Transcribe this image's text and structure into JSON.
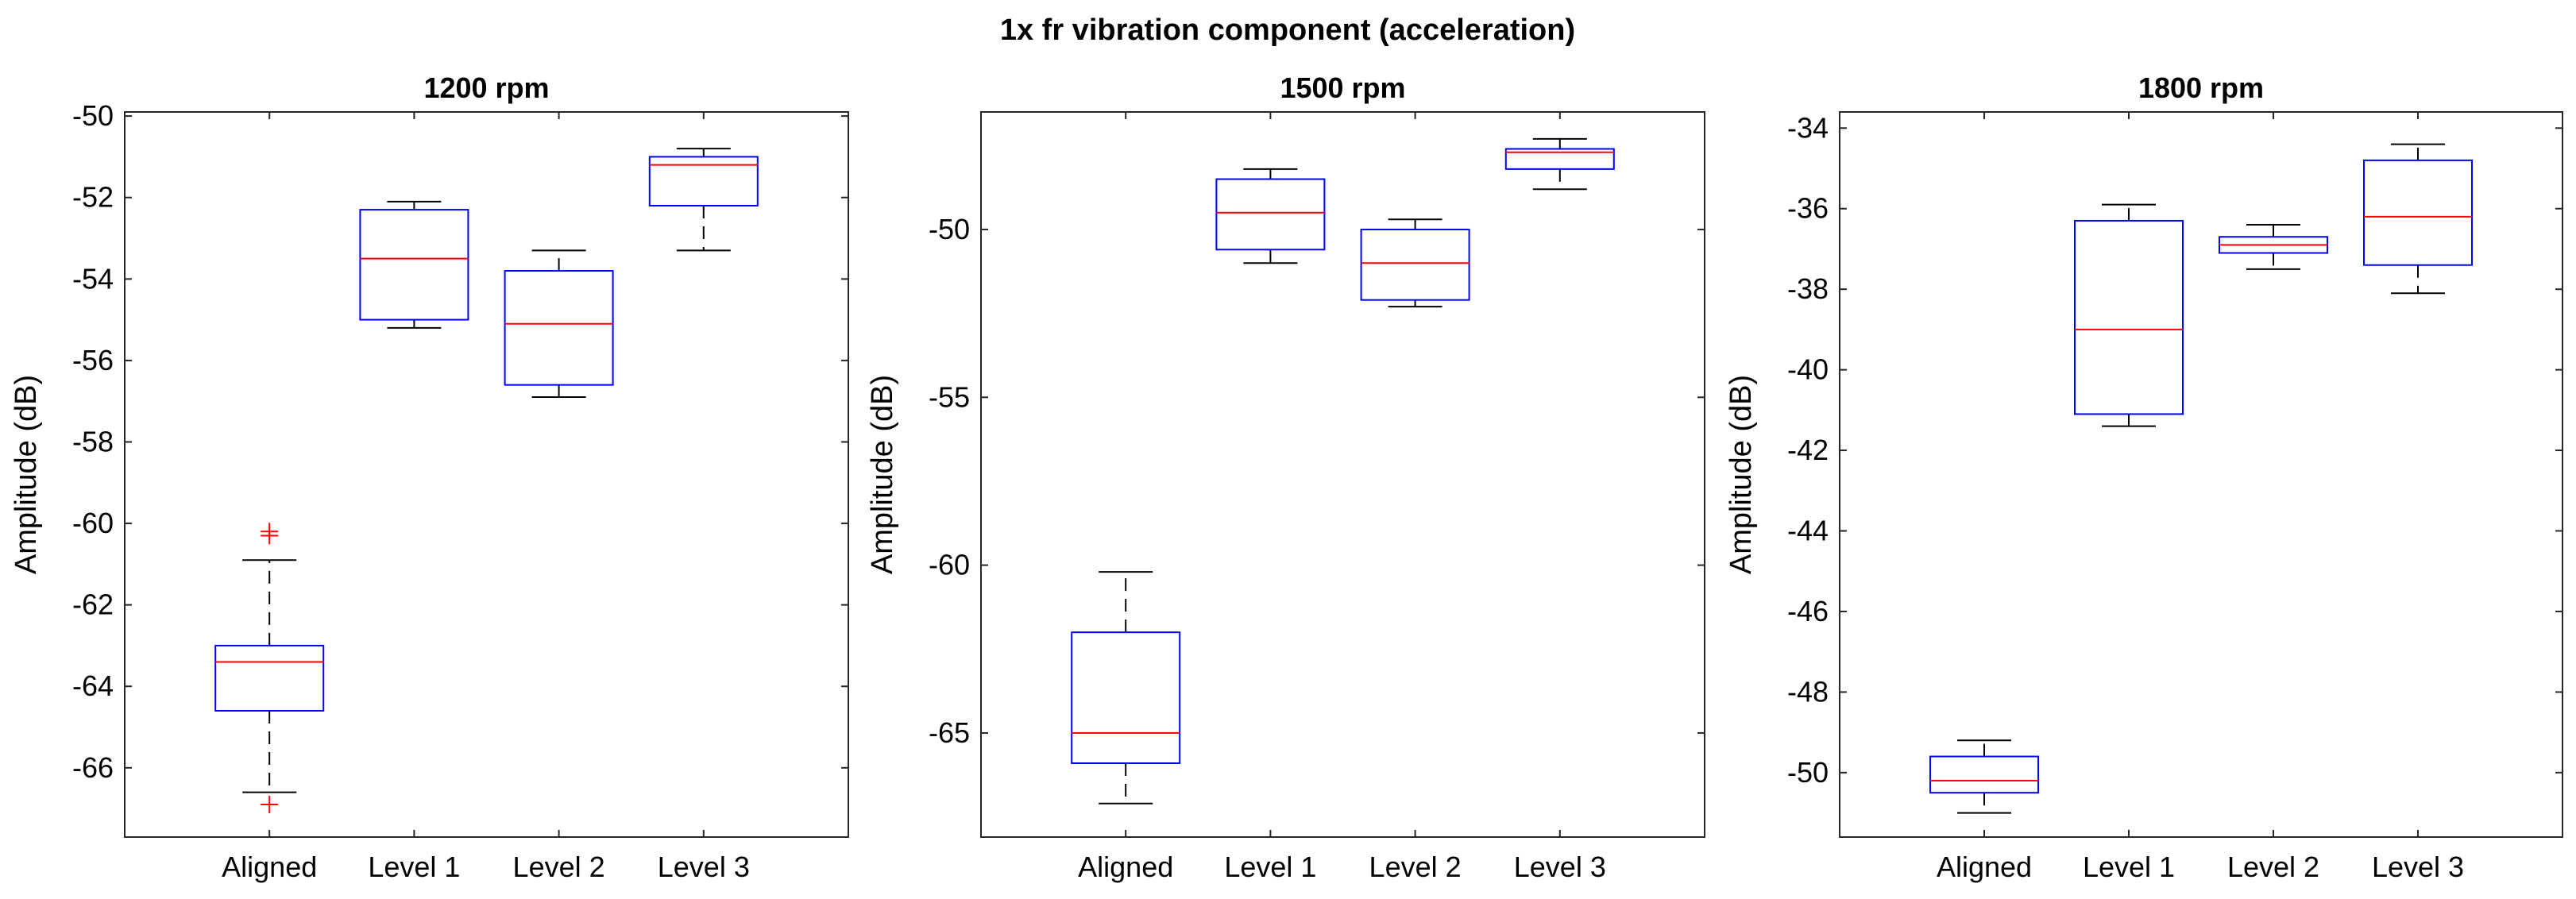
{
  "figure_title": "1x fr vibration component (acceleration)",
  "chart_data": [
    {
      "type": "boxplot",
      "title": "1200 rpm",
      "xlabel": "",
      "ylabel": "Amplitude (dB)",
      "categories": [
        "Aligned",
        "Level 1",
        "Level 2",
        "Level 3"
      ],
      "ylim": [
        -67.7,
        -49.9
      ],
      "yticks": [
        -66,
        -64,
        -62,
        -60,
        -58,
        -56,
        -54,
        -52,
        -50
      ],
      "ytick_labels": [
        "-66",
        "-64",
        "-62",
        "-60",
        "-58",
        "-56",
        "-54",
        "-52",
        "-50"
      ],
      "boxes": [
        {
          "lower_whisker": -66.6,
          "q1": -64.6,
          "median": -63.4,
          "q3": -63.0,
          "upper_whisker": -60.9,
          "outliers": [
            -60.2,
            -60.3,
            -66.9
          ]
        },
        {
          "lower_whisker": -55.2,
          "q1": -55.0,
          "median": -53.5,
          "q3": -52.3,
          "upper_whisker": -52.1,
          "outliers": []
        },
        {
          "lower_whisker": -56.9,
          "q1": -56.6,
          "median": -55.1,
          "q3": -53.8,
          "upper_whisker": -53.3,
          "outliers": []
        },
        {
          "lower_whisker": -53.3,
          "q1": -52.2,
          "median": -51.2,
          "q3": -51.0,
          "upper_whisker": -50.8,
          "outliers": []
        }
      ]
    },
    {
      "type": "boxplot",
      "title": "1500 rpm",
      "xlabel": "",
      "ylabel": "Amplitude (dB)",
      "categories": [
        "Aligned",
        "Level 1",
        "Level 2",
        "Level 3"
      ],
      "ylim": [
        -68.1,
        -46.5
      ],
      "yticks": [
        -65,
        -60,
        -55,
        -50
      ],
      "ytick_labels": [
        "-65",
        "-60",
        "-55",
        "-50"
      ],
      "boxes": [
        {
          "lower_whisker": -67.1,
          "q1": -65.9,
          "median": -65.0,
          "q3": -62.0,
          "upper_whisker": -60.2,
          "outliers": []
        },
        {
          "lower_whisker": -51.0,
          "q1": -50.6,
          "median": -49.5,
          "q3": -48.5,
          "upper_whisker": -48.2,
          "outliers": []
        },
        {
          "lower_whisker": -52.3,
          "q1": -52.1,
          "median": -51.0,
          "q3": -50.0,
          "upper_whisker": -49.7,
          "outliers": []
        },
        {
          "lower_whisker": -48.8,
          "q1": -48.2,
          "median": -47.7,
          "q3": -47.6,
          "upper_whisker": -47.3,
          "outliers": []
        }
      ]
    },
    {
      "type": "boxplot",
      "title": "1800 rpm",
      "xlabel": "",
      "ylabel": "Amplitude (dB)",
      "categories": [
        "Aligned",
        "Level 1",
        "Level 2",
        "Level 3"
      ],
      "ylim": [
        -51.6,
        -33.6
      ],
      "yticks": [
        -50,
        -48,
        -46,
        -44,
        -42,
        -40,
        -38,
        -36,
        -34
      ],
      "ytick_labels": [
        "-50",
        "-48",
        "-46",
        "-44",
        "-42",
        "-40",
        "-38",
        "-36",
        "-34"
      ],
      "boxes": [
        {
          "lower_whisker": -51.0,
          "q1": -50.5,
          "median": -50.2,
          "q3": -49.6,
          "upper_whisker": -49.2,
          "outliers": []
        },
        {
          "lower_whisker": -41.4,
          "q1": -41.1,
          "median": -39.0,
          "q3": -36.3,
          "upper_whisker": -35.9,
          "outliers": []
        },
        {
          "lower_whisker": -37.5,
          "q1": -37.1,
          "median": -36.9,
          "q3": -36.7,
          "upper_whisker": -36.4,
          "outliers": []
        },
        {
          "lower_whisker": -38.1,
          "q1": -37.4,
          "median": -36.2,
          "q3": -34.8,
          "upper_whisker": -34.4,
          "outliers": []
        }
      ]
    }
  ]
}
